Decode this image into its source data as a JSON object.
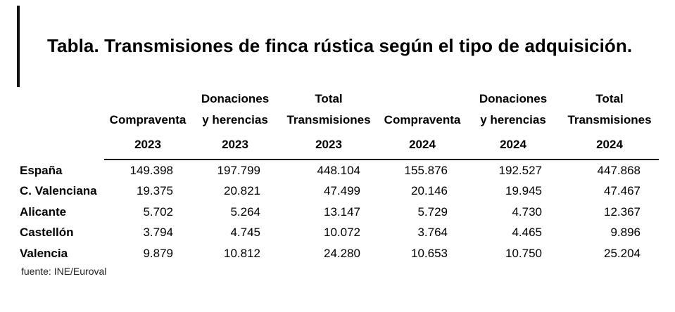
{
  "title": "Tabla. Transmisiones de finca rústica según el tipo de adquisición.",
  "header": {
    "line1": [
      "",
      "",
      "Donaciones",
      "Total",
      "",
      "Donaciones",
      "Total"
    ],
    "line2": [
      "",
      "Compraventa",
      "y herencias",
      "Transmisiones",
      "Compraventa",
      "y herencias",
      "Transmisiones"
    ],
    "years": [
      "",
      "2023",
      "2023",
      "2023",
      "2024",
      "2024",
      "2024"
    ]
  },
  "rows": [
    {
      "label": "España",
      "values": [
        "149.398",
        "197.799",
        "448.104",
        "155.876",
        "192.527",
        "447.868"
      ]
    },
    {
      "label": "C. Valenciana",
      "values": [
        "19.375",
        "20.821",
        "47.499",
        "20.146",
        "19.945",
        "47.467"
      ]
    },
    {
      "label": "Alicante",
      "values": [
        "5.702",
        "5.264",
        "13.147",
        "5.729",
        "4.730",
        "12.367"
      ]
    },
    {
      "label": "Castellón",
      "values": [
        "3.794",
        "4.745",
        "10.072",
        "3.764",
        "4.465",
        "9.896"
      ]
    },
    {
      "label": "Valencia",
      "values": [
        "9.879",
        "10.812",
        "24.280",
        "10.653",
        "10.750",
        "25.204"
      ]
    }
  ],
  "source": "fuente: INE/Euroval"
}
